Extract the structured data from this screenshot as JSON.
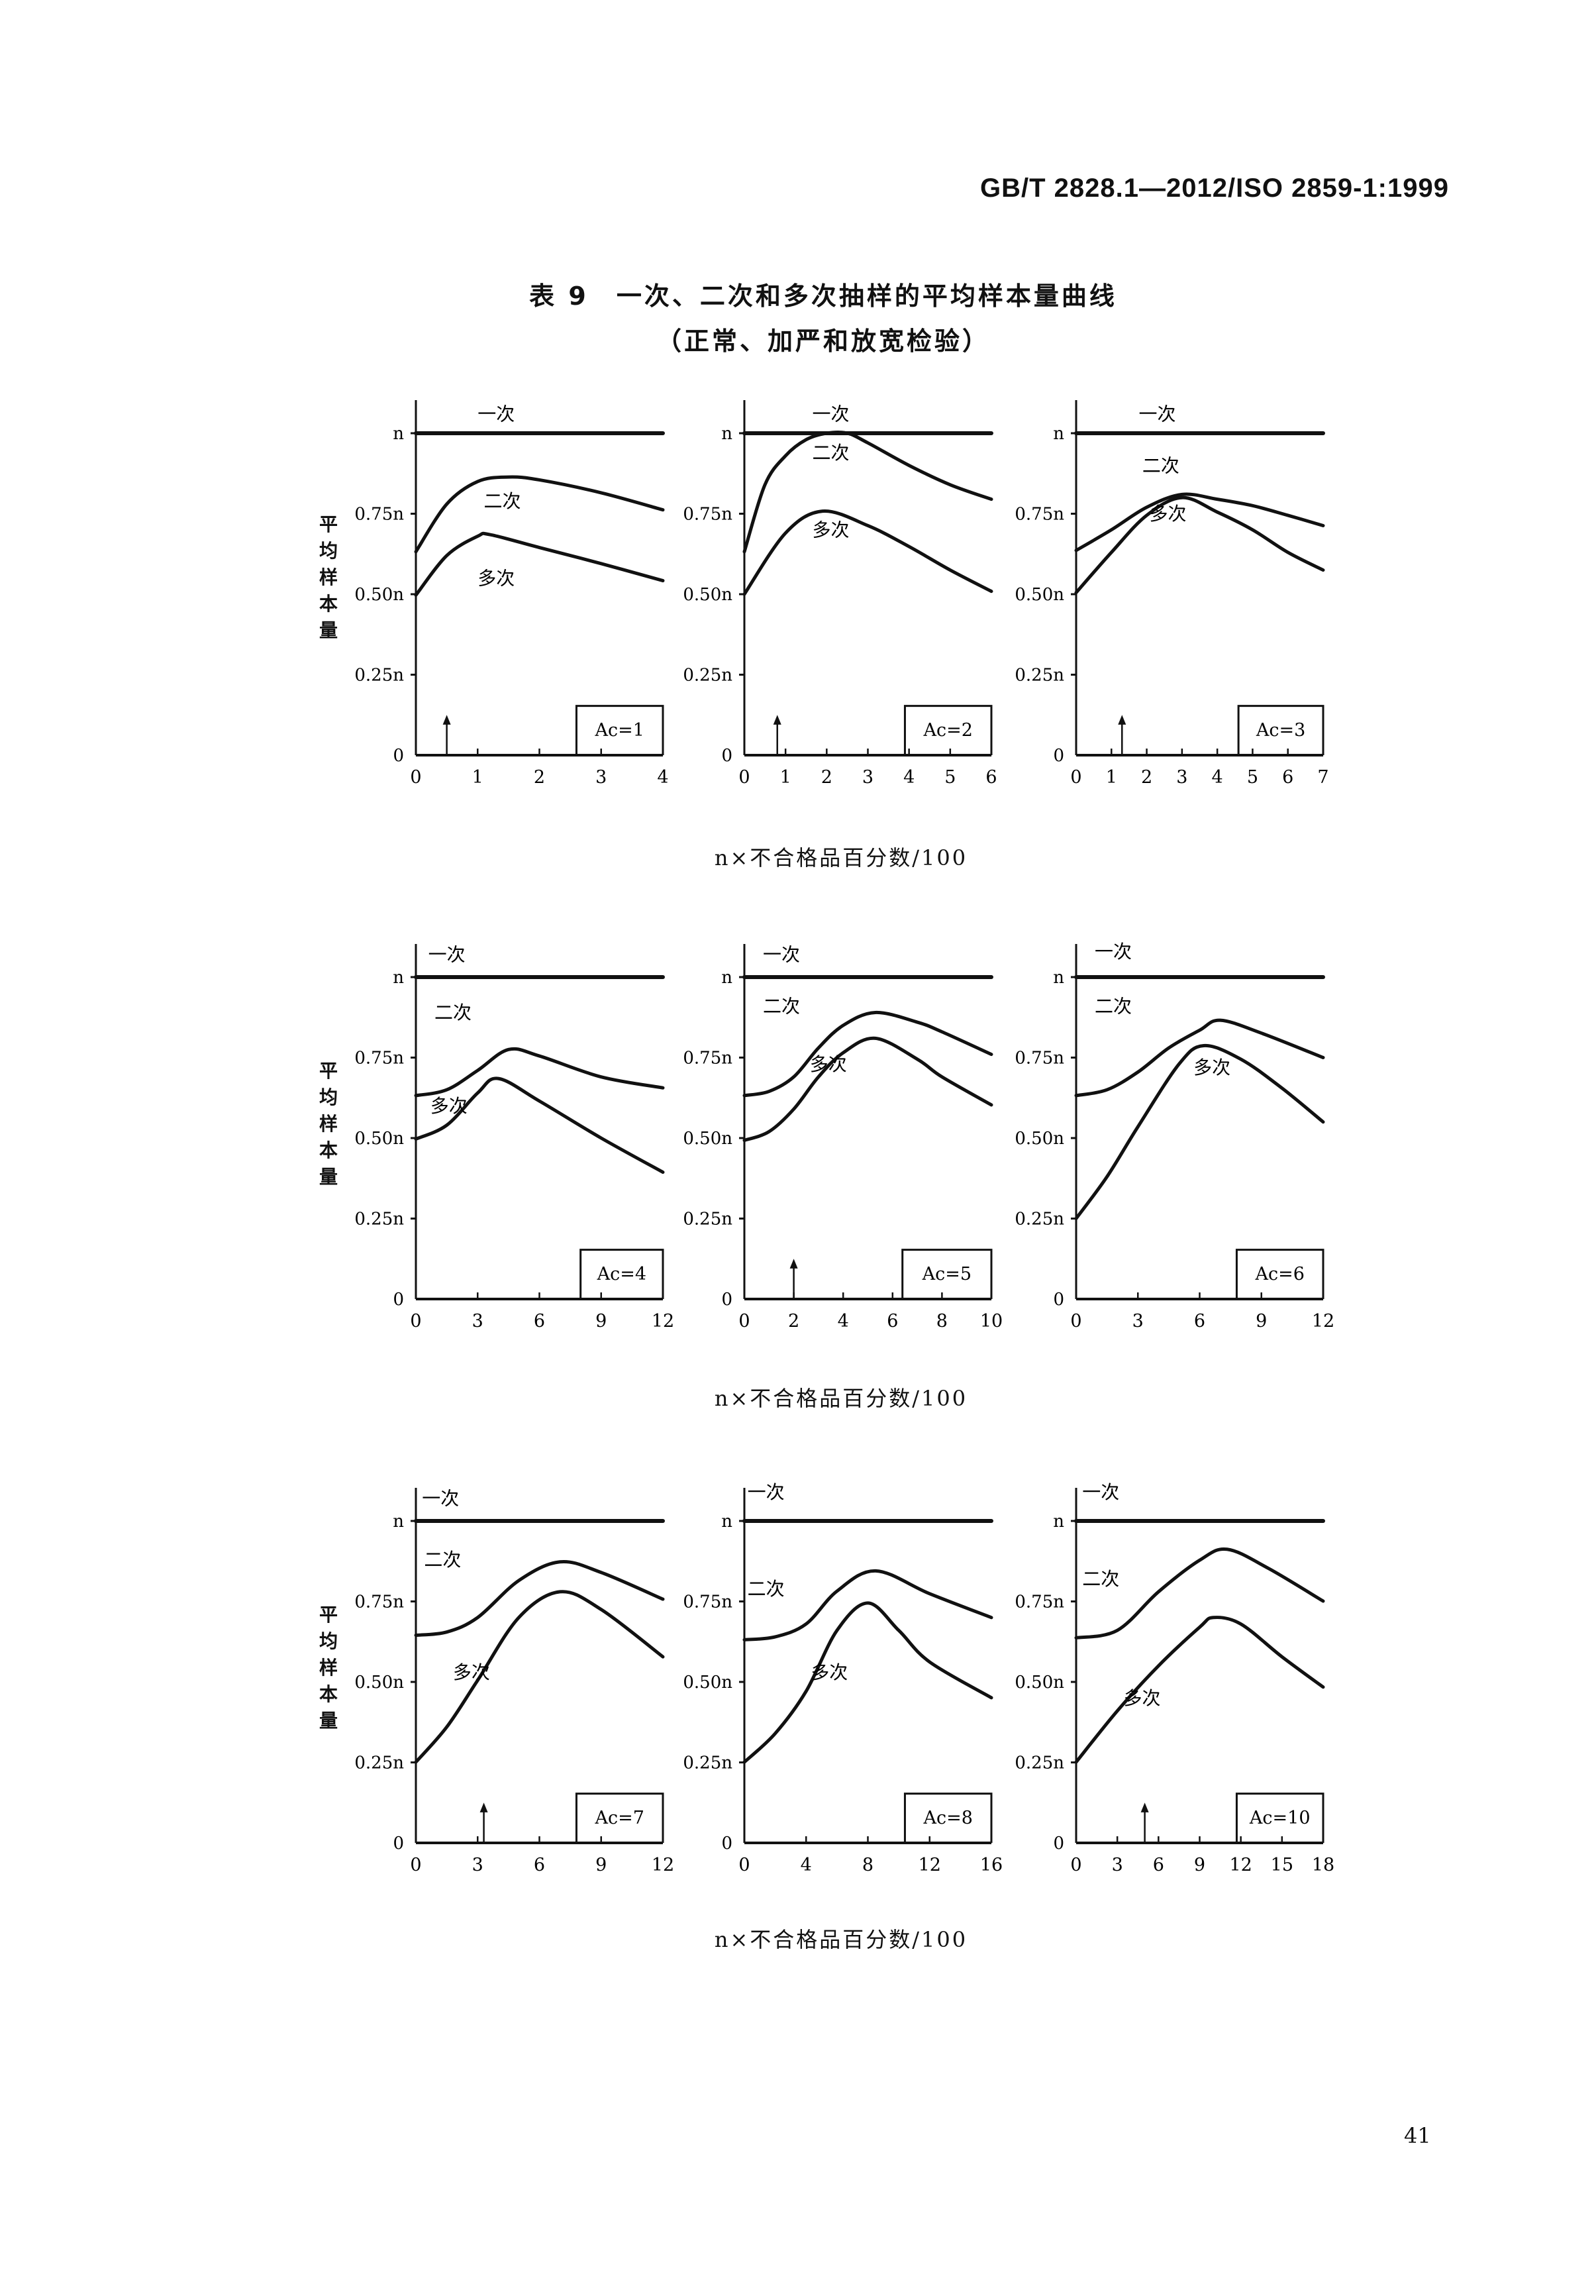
{
  "header": {
    "standard_code": "GB/T 2828.1—2012/ISO 2859-1:1999"
  },
  "title": "表 9　一次、二次和多次抽样的平均样本量曲线",
  "subtitle": "（正常、加严和放宽检验）",
  "page_number": "41",
  "row_xlabel": "n×不合格品百分数/100",
  "row_ylabel": "平均样本量",
  "chart_data": [
    {
      "type": "line",
      "ac_label": "Ac=1",
      "xlim": [
        0,
        4
      ],
      "xticks": [
        "0",
        "1",
        "2",
        "3",
        "4"
      ],
      "yticks": [
        "0",
        "0.25n",
        "0.50n",
        "0.75n",
        "n"
      ],
      "ylim": [
        0,
        1
      ],
      "arrow_x": 0.5,
      "series": [
        {
          "name": "一次",
          "x": [
            0,
            4
          ],
          "y": [
            1,
            1
          ]
        },
        {
          "name": "二次",
          "x": [
            0,
            0.5,
            1,
            1.5,
            2,
            3,
            4
          ],
          "y": [
            0.632,
            0.78,
            0.85,
            0.864,
            0.855,
            0.815,
            0.762
          ]
        },
        {
          "name": "多次",
          "x": [
            0,
            0.5,
            1,
            1.2,
            2,
            3,
            4
          ],
          "y": [
            0.497,
            0.62,
            0.68,
            0.685,
            0.645,
            0.595,
            0.542
          ]
        }
      ]
    },
    {
      "type": "line",
      "ac_label": "Ac=2",
      "xlim": [
        0,
        6
      ],
      "xticks": [
        "0",
        "1",
        "2",
        "3",
        "4",
        "5",
        "6"
      ],
      "yticks": [
        "0",
        "0.25n",
        "0.50n",
        "0.75n",
        "n"
      ],
      "ylim": [
        0,
        1
      ],
      "arrow_x": 0.8,
      "series": [
        {
          "name": "一次",
          "x": [
            0,
            6
          ],
          "y": [
            1,
            1
          ]
        },
        {
          "name": "二次",
          "x": [
            0,
            0.5,
            1,
            1.5,
            2,
            2.5,
            3,
            4,
            5,
            6
          ],
          "y": [
            0.632,
            0.84,
            0.93,
            0.98,
            1.0,
            1.0,
            0.97,
            0.9,
            0.84,
            0.795
          ]
        },
        {
          "name": "多次",
          "x": [
            0,
            1,
            1.9,
            3,
            4,
            5,
            6
          ],
          "y": [
            0.5,
            0.69,
            0.758,
            0.713,
            0.648,
            0.575,
            0.509
          ]
        }
      ]
    },
    {
      "type": "line",
      "ac_label": "Ac=3",
      "xlim": [
        0,
        7
      ],
      "xticks": [
        "0",
        "1",
        "2",
        "3",
        "4",
        "5",
        "6",
        "7"
      ],
      "yticks": [
        "0",
        "0.25n",
        "0.50n",
        "0.75n",
        "n"
      ],
      "ylim": [
        0,
        1
      ],
      "arrow_x": 1.3,
      "series": [
        {
          "name": "一次",
          "x": [
            0,
            7
          ],
          "y": [
            1,
            1
          ]
        },
        {
          "name": "二次",
          "x": [
            0,
            1,
            2,
            3,
            4,
            5,
            6,
            7
          ],
          "y": [
            0.636,
            0.7,
            0.77,
            0.81,
            0.795,
            0.775,
            0.745,
            0.713
          ]
        },
        {
          "name": "多次",
          "x": [
            0,
            1,
            2,
            3,
            4,
            5,
            6,
            7
          ],
          "y": [
            0.505,
            0.63,
            0.745,
            0.8,
            0.755,
            0.7,
            0.63,
            0.575
          ]
        }
      ]
    },
    {
      "type": "line",
      "ac_label": "Ac=4",
      "xlim": [
        0,
        12
      ],
      "xticks": [
        "0",
        "3",
        "6",
        "9",
        "12"
      ],
      "yticks": [
        "0",
        "0.25n",
        "0.50n",
        "0.75n",
        "n"
      ],
      "ylim": [
        0,
        1
      ],
      "arrow_x": null,
      "series": [
        {
          "name": "一次",
          "x": [
            0,
            12
          ],
          "y": [
            1,
            1
          ]
        },
        {
          "name": "二次",
          "x": [
            0,
            1.5,
            3,
            4.5,
            6,
            9,
            12
          ],
          "y": [
            0.632,
            0.65,
            0.71,
            0.775,
            0.755,
            0.69,
            0.656
          ]
        },
        {
          "name": "多次",
          "x": [
            0,
            1.5,
            3,
            4,
            6,
            9,
            12
          ],
          "y": [
            0.497,
            0.54,
            0.64,
            0.685,
            0.615,
            0.5,
            0.394
          ]
        }
      ]
    },
    {
      "type": "line",
      "ac_label": "Ac=5",
      "xlim": [
        0,
        10
      ],
      "xticks": [
        "0",
        "2",
        "4",
        "6",
        "8",
        "10"
      ],
      "yticks": [
        "0",
        "0.25n",
        "0.50n",
        "0.75n",
        "n"
      ],
      "ylim": [
        0,
        1
      ],
      "arrow_x": 2,
      "series": [
        {
          "name": "一次",
          "x": [
            0,
            10
          ],
          "y": [
            1,
            1
          ]
        },
        {
          "name": "二次",
          "x": [
            0,
            1,
            2,
            3,
            4,
            5.3,
            7,
            8,
            10
          ],
          "y": [
            0.632,
            0.645,
            0.69,
            0.78,
            0.85,
            0.89,
            0.86,
            0.83,
            0.76
          ]
        },
        {
          "name": "多次",
          "x": [
            0,
            1,
            2,
            3,
            4,
            5.3,
            7,
            8,
            10
          ],
          "y": [
            0.493,
            0.52,
            0.59,
            0.69,
            0.765,
            0.81,
            0.745,
            0.69,
            0.603
          ]
        }
      ]
    },
    {
      "type": "line",
      "ac_label": "Ac=6",
      "xlim": [
        0,
        12
      ],
      "xticks": [
        "0",
        "3",
        "6",
        "9",
        "12"
      ],
      "yticks": [
        "0",
        "0.25n",
        "0.50n",
        "0.75n",
        "n"
      ],
      "ylim": [
        0,
        1
      ],
      "arrow_x": null,
      "series": [
        {
          "name": "一次",
          "x": [
            0,
            12
          ],
          "y": [
            1,
            1
          ]
        },
        {
          "name": "二次",
          "x": [
            0,
            1.5,
            3,
            4.5,
            6,
            7,
            9,
            12
          ],
          "y": [
            0.632,
            0.65,
            0.705,
            0.78,
            0.835,
            0.866,
            0.826,
            0.75
          ]
        },
        {
          "name": "多次",
          "x": [
            0,
            1.5,
            3,
            5,
            6.2,
            8,
            10,
            12
          ],
          "y": [
            0.25,
            0.38,
            0.535,
            0.73,
            0.787,
            0.745,
            0.655,
            0.55
          ]
        }
      ]
    },
    {
      "type": "line",
      "ac_label": "Ac=7",
      "xlim": [
        0,
        12
      ],
      "xticks": [
        "0",
        "3",
        "6",
        "9",
        "12"
      ],
      "yticks": [
        "0",
        "0.25n",
        "0.50n",
        "0.75n",
        "n"
      ],
      "ylim": [
        0,
        1
      ],
      "arrow_x": 3.3,
      "series": [
        {
          "name": "一次",
          "x": [
            0,
            12
          ],
          "y": [
            1,
            1
          ]
        },
        {
          "name": "二次",
          "x": [
            0,
            1.5,
            3,
            5,
            7,
            9,
            12
          ],
          "y": [
            0.645,
            0.655,
            0.7,
            0.815,
            0.873,
            0.84,
            0.757
          ]
        },
        {
          "name": "多次",
          "x": [
            0,
            1.5,
            3,
            5,
            7,
            9,
            12
          ],
          "y": [
            0.251,
            0.36,
            0.505,
            0.7,
            0.78,
            0.725,
            0.578
          ]
        }
      ]
    },
    {
      "type": "line",
      "ac_label": "Ac=8",
      "xlim": [
        0,
        16
      ],
      "xticks": [
        "0",
        "4",
        "8",
        "12",
        "16"
      ],
      "yticks": [
        "0",
        "0.25n",
        "0.50n",
        "0.75n",
        "n"
      ],
      "ylim": [
        0,
        1
      ],
      "arrow_x": null,
      "series": [
        {
          "name": "一次",
          "x": [
            0,
            16
          ],
          "y": [
            1,
            1
          ]
        },
        {
          "name": "二次",
          "x": [
            0,
            2,
            4,
            6,
            8.5,
            12,
            16
          ],
          "y": [
            0.631,
            0.64,
            0.68,
            0.782,
            0.845,
            0.774,
            0.7
          ]
        },
        {
          "name": "多次",
          "x": [
            0,
            2,
            4,
            6,
            8,
            10,
            12,
            16
          ],
          "y": [
            0.251,
            0.34,
            0.471,
            0.66,
            0.745,
            0.66,
            0.562,
            0.451
          ]
        }
      ]
    },
    {
      "type": "line",
      "ac_label": "Ac=10",
      "xlim": [
        0,
        18
      ],
      "xticks": [
        "0",
        "3",
        "6",
        "9",
        "12",
        "15",
        "18"
      ],
      "yticks": [
        "0",
        "0.25n",
        "0.50n",
        "0.75n",
        "n"
      ],
      "ylim": [
        0,
        1
      ],
      "arrow_x": 5,
      "series": [
        {
          "name": "一次",
          "x": [
            0,
            18
          ],
          "y": [
            1,
            1
          ]
        },
        {
          "name": "二次",
          "x": [
            0,
            3,
            6,
            9,
            11,
            14,
            18
          ],
          "y": [
            0.637,
            0.66,
            0.78,
            0.878,
            0.912,
            0.853,
            0.751
          ]
        },
        {
          "name": "多次",
          "x": [
            0,
            3,
            6,
            9,
            10,
            12,
            15,
            18
          ],
          "y": [
            0.251,
            0.41,
            0.55,
            0.67,
            0.7,
            0.68,
            0.578,
            0.484
          ]
        }
      ]
    }
  ],
  "colors": {
    "ink": "#111111",
    "background": "#ffffff"
  }
}
